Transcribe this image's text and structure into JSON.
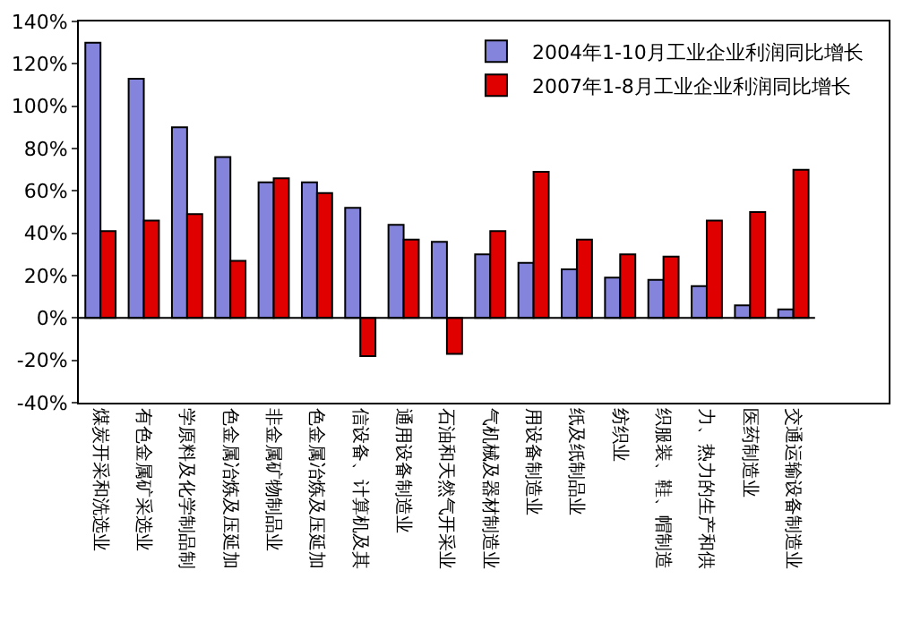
{
  "chart_data": {
    "type": "bar",
    "categories": [
      "煤炭开采和洗选业",
      "有色金属矿采选业",
      "学原料及化学制品制",
      "色金属冶炼及压延加",
      "非金属矿物制品业",
      "色金属冶炼及压延加",
      "信设备、计算机及其",
      "通用设备制造业",
      "石油和天然气开采业",
      "气机械及器材制造业",
      "用设备制造业",
      "纸及纸制品业",
      "纺织业",
      "织服装、鞋、帽制造",
      "力、热力的生产和供",
      "医药制造业",
      "交通运输设备制造业"
    ],
    "series": [
      {
        "name": "2004年1-10月工业企业利润同比增长",
        "color": "#8484dc",
        "values": [
          130,
          113,
          90,
          76,
          64,
          64,
          52,
          44,
          36,
          30,
          26,
          23,
          19,
          18,
          15,
          6,
          4
        ]
      },
      {
        "name": "2007年1-8月工业企业利润同比增长",
        "color": "#e00000",
        "values": [
          41,
          46,
          49,
          27,
          66,
          59,
          -18,
          37,
          -17,
          41,
          69,
          37,
          30,
          29,
          46,
          50,
          70
        ]
      }
    ],
    "ylim": [
      -40,
      140
    ],
    "yticks": [
      {
        "value": -40,
        "label": "-40%"
      },
      {
        "value": -20,
        "label": "-20%"
      },
      {
        "value": 0,
        "label": "0%"
      },
      {
        "value": 20,
        "label": "20%"
      },
      {
        "value": 40,
        "label": "40%"
      },
      {
        "value": 60,
        "label": "60%"
      },
      {
        "value": 80,
        "label": "80%"
      },
      {
        "value": 100,
        "label": "100%"
      },
      {
        "value": 120,
        "label": "120%"
      },
      {
        "value": 140,
        "label": "140%"
      }
    ],
    "ref_lines": [
      {
        "axis": "y",
        "value": 0,
        "color": "#000000"
      }
    ],
    "grid": false,
    "legend": "top right"
  }
}
